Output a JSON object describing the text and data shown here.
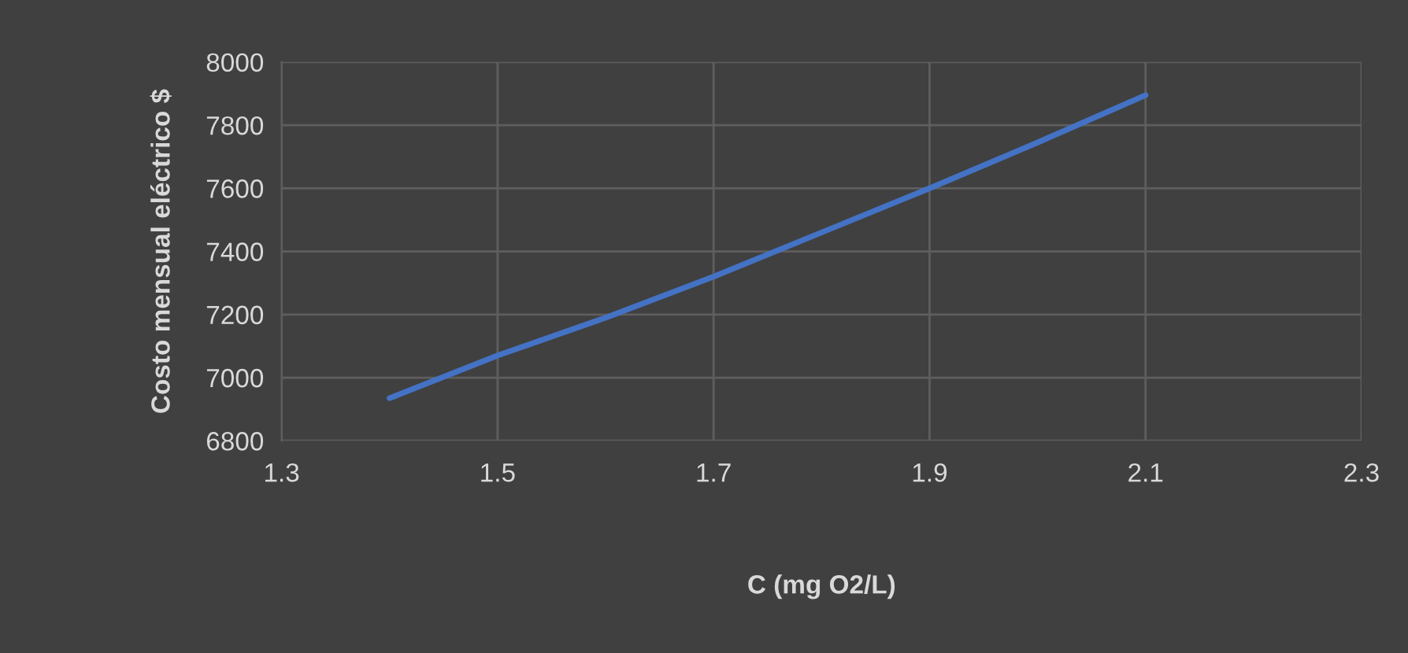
{
  "chart_data": {
    "type": "line",
    "xlabel": "C (mg O2/L)",
    "ylabel": "Costo mensual eléctrico $",
    "x": [
      1.4,
      1.5,
      1.6,
      1.7,
      1.8,
      1.9,
      2.0,
      2.1
    ],
    "series": [
      {
        "color": "#4472c4",
        "values": [
          6935,
          7070,
          7190,
          7320,
          7460,
          7600,
          7745,
          7895
        ]
      }
    ],
    "xlim": [
      1.3,
      2.3
    ],
    "xticks": [
      1.3,
      1.5,
      1.7,
      1.9,
      2.1,
      2.3
    ],
    "ylim": [
      6800,
      8000
    ],
    "yticks": [
      6800,
      7000,
      7200,
      7400,
      7600,
      7800,
      8000
    ],
    "grid": true,
    "legend": false,
    "marker": "none",
    "line_style": "solid"
  }
}
